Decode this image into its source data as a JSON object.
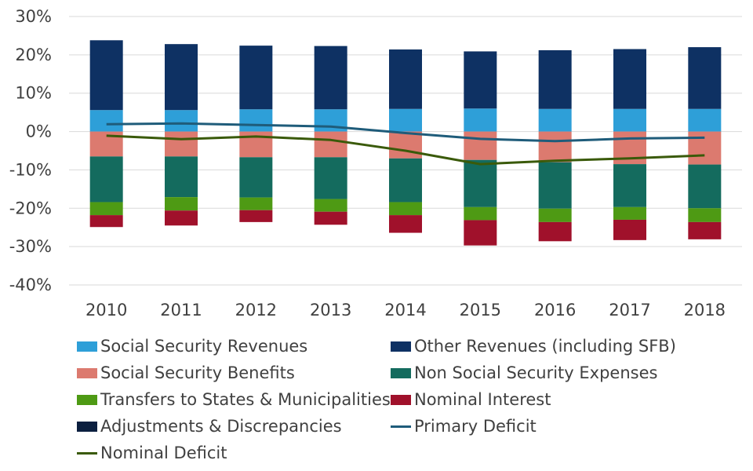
{
  "chart_data": {
    "type": "bar",
    "stacked": true,
    "categories": [
      "2010",
      "2011",
      "2012",
      "2013",
      "2014",
      "2015",
      "2016",
      "2017",
      "2018"
    ],
    "ylim": [
      -40,
      30
    ],
    "yticks": [
      -40,
      -30,
      -20,
      -10,
      0,
      10,
      20,
      30
    ],
    "ytick_labels": [
      "-40%",
      "-30%",
      "-20%",
      "-10%",
      "0%",
      "10%",
      "20%",
      "30%"
    ],
    "grid": true,
    "legend_position": "bottom",
    "series": [
      {
        "name": "Social Security Revenues",
        "kind": "bar",
        "color": "#2E9FD8",
        "values": [
          5.6,
          5.6,
          5.8,
          5.8,
          5.9,
          6.0,
          5.9,
          5.9,
          5.9
        ]
      },
      {
        "name": "Other Revenues (including SFB)",
        "kind": "bar",
        "color": "#0E3163",
        "values": [
          18.2,
          17.2,
          16.6,
          16.5,
          15.5,
          14.9,
          15.3,
          15.6,
          16.1
        ]
      },
      {
        "name": "Social Security Benefits",
        "kind": "bar",
        "color": "#DC7A6F",
        "values": [
          -6.5,
          -6.5,
          -6.7,
          -6.7,
          -7.0,
          -7.4,
          -8.0,
          -8.5,
          -8.6
        ]
      },
      {
        "name": "Non Social Security Expenses",
        "kind": "bar",
        "color": "#146B5E",
        "values": [
          -11.9,
          -10.6,
          -10.5,
          -10.9,
          -11.4,
          -12.3,
          -12.1,
          -11.2,
          -11.4
        ]
      },
      {
        "name": "Transfers to States & Municipalities",
        "kind": "bar",
        "color": "#4E9A14",
        "values": [
          -3.4,
          -3.5,
          -3.3,
          -3.3,
          -3.4,
          -3.4,
          -3.5,
          -3.3,
          -3.6
        ]
      },
      {
        "name": "Nominal Interest",
        "kind": "bar",
        "color": "#A0112B",
        "values": [
          -3.1,
          -3.9,
          -3.1,
          -3.4,
          -4.6,
          -6.6,
          -5.0,
          -5.3,
          -4.5
        ]
      },
      {
        "name": "Adjustments & Discrepancies",
        "kind": "bar",
        "color": "#0B1F3F",
        "values": [
          0,
          0,
          0,
          0,
          0,
          0,
          0,
          0,
          0
        ]
      },
      {
        "name": "Primary Deficit",
        "kind": "line",
        "color": "#1F5C7A",
        "values": [
          1.9,
          2.1,
          1.7,
          1.3,
          -0.4,
          -1.9,
          -2.5,
          -1.8,
          -1.6
        ]
      },
      {
        "name": "Nominal Deficit",
        "kind": "line",
        "color": "#3A5A0A",
        "values": [
          -1.1,
          -2.0,
          -1.3,
          -2.2,
          -5.0,
          -8.5,
          -7.6,
          -7.0,
          -6.2
        ]
      }
    ]
  }
}
